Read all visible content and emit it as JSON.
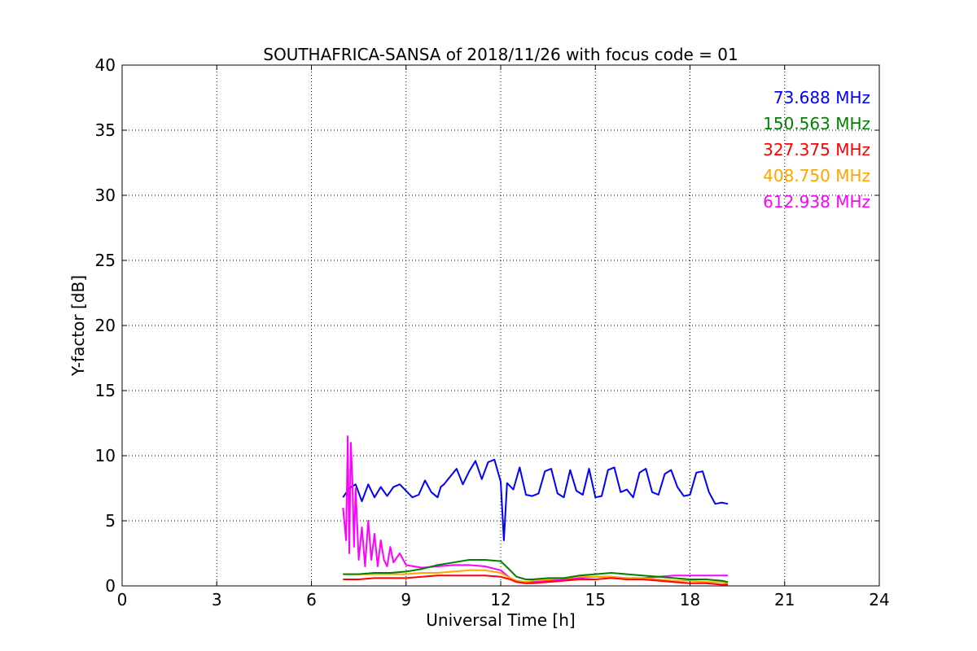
{
  "chart_data": {
    "type": "line",
    "title": "SOUTHAFRICA-SANSA of 2018/11/26 with focus code = 01",
    "xlabel": "Universal Time [h]",
    "ylabel": "Y-factor [dB]",
    "xlim": [
      0,
      24
    ],
    "ylim": [
      0,
      40
    ],
    "xticks": [
      0,
      3,
      6,
      9,
      12,
      15,
      18,
      21,
      24
    ],
    "xtick_labels": [
      "0",
      "3",
      "6",
      "9",
      "12",
      "15",
      "18",
      "21",
      "24"
    ],
    "yticks": [
      0,
      5,
      10,
      15,
      20,
      25,
      30,
      35,
      40
    ],
    "ytick_labels": [
      "0",
      "5",
      "10",
      "15",
      "20",
      "25",
      "30",
      "35",
      "40"
    ],
    "grid": true,
    "legend_position": "top-right",
    "series": [
      {
        "name": "73.688 MHz",
        "color": "#0000ff",
        "x": [
          7.0,
          7.2,
          7.4,
          7.6,
          7.8,
          8.0,
          8.2,
          8.4,
          8.6,
          8.8,
          9.0,
          9.2,
          9.4,
          9.6,
          9.8,
          10.0,
          10.1,
          10.2,
          10.4,
          10.6,
          10.8,
          11.0,
          11.2,
          11.4,
          11.6,
          11.8,
          12.0,
          12.1,
          12.2,
          12.4,
          12.6,
          12.8,
          13.0,
          13.2,
          13.4,
          13.6,
          13.8,
          14.0,
          14.2,
          14.4,
          14.6,
          14.8,
          15.0,
          15.2,
          15.4,
          15.6,
          15.8,
          16.0,
          16.2,
          16.4,
          16.6,
          16.8,
          17.0,
          17.2,
          17.4,
          17.6,
          17.8,
          18.0,
          18.2,
          18.4,
          18.6,
          18.8,
          19.0,
          19.2
        ],
        "values": [
          6.8,
          7.5,
          7.8,
          6.5,
          7.8,
          6.8,
          7.6,
          6.9,
          7.6,
          7.8,
          7.3,
          6.8,
          7.0,
          8.1,
          7.2,
          6.8,
          7.6,
          7.8,
          8.4,
          9.0,
          7.8,
          8.8,
          9.6,
          8.2,
          9.5,
          9.7,
          8.0,
          3.5,
          7.9,
          7.4,
          9.1,
          7.0,
          6.9,
          7.1,
          8.8,
          9.0,
          7.1,
          6.8,
          8.9,
          7.3,
          7.0,
          9.0,
          6.8,
          6.9,
          8.9,
          9.1,
          7.2,
          7.4,
          6.8,
          8.7,
          9.0,
          7.2,
          7.0,
          8.6,
          8.9,
          7.6,
          6.9,
          7.0,
          8.7,
          8.8,
          7.2,
          6.3,
          6.4,
          6.3
        ]
      },
      {
        "name": "150.563 MHz",
        "color": "#008000",
        "x": [
          7.0,
          7.5,
          8.0,
          8.5,
          9.0,
          9.5,
          10.0,
          10.5,
          11.0,
          11.5,
          12.0,
          12.3,
          12.5,
          12.8,
          13.0,
          13.5,
          14.0,
          14.5,
          15.0,
          15.5,
          16.0,
          16.5,
          17.0,
          17.5,
          18.0,
          18.5,
          19.0,
          19.2
        ],
        "values": [
          0.9,
          0.9,
          1.0,
          1.0,
          1.1,
          1.3,
          1.6,
          1.8,
          2.0,
          2.0,
          1.9,
          1.2,
          0.7,
          0.5,
          0.5,
          0.6,
          0.6,
          0.8,
          0.9,
          1.0,
          0.9,
          0.8,
          0.7,
          0.6,
          0.5,
          0.5,
          0.4,
          0.3
        ]
      },
      {
        "name": "327.375 MHz",
        "color": "#ff0000",
        "x": [
          7.0,
          7.5,
          8.0,
          8.5,
          9.0,
          9.5,
          10.0,
          10.5,
          11.0,
          11.5,
          12.0,
          12.3,
          12.5,
          12.8,
          13.0,
          13.5,
          14.0,
          14.5,
          15.0,
          15.5,
          16.0,
          16.5,
          17.0,
          17.5,
          18.0,
          18.5,
          19.0,
          19.2
        ],
        "values": [
          0.5,
          0.5,
          0.6,
          0.6,
          0.6,
          0.7,
          0.8,
          0.8,
          0.8,
          0.8,
          0.7,
          0.5,
          0.3,
          0.2,
          0.2,
          0.3,
          0.4,
          0.5,
          0.5,
          0.6,
          0.5,
          0.5,
          0.4,
          0.3,
          0.2,
          0.2,
          0.1,
          0.1
        ]
      },
      {
        "name": "408.750 MHz",
        "color": "#ffa500",
        "x": [
          7.0,
          7.5,
          8.0,
          8.5,
          9.0,
          9.5,
          10.0,
          10.5,
          11.0,
          11.5,
          12.0,
          12.3,
          12.5,
          12.8,
          13.0,
          13.5,
          14.0,
          14.5,
          15.0,
          15.5,
          16.0,
          16.5,
          17.0,
          17.5,
          18.0,
          18.5,
          19.0,
          19.2
        ],
        "values": [
          0.9,
          0.9,
          0.9,
          0.9,
          0.9,
          1.0,
          1.0,
          1.1,
          1.2,
          1.2,
          1.0,
          0.6,
          0.4,
          0.3,
          0.4,
          0.5,
          0.6,
          0.7,
          0.7,
          0.7,
          0.6,
          0.6,
          0.5,
          0.4,
          0.4,
          0.3,
          0.3,
          0.2
        ]
      },
      {
        "name": "612.938 MHz",
        "color": "#ff00ff",
        "x": [
          7.0,
          7.1,
          7.15,
          7.2,
          7.25,
          7.3,
          7.35,
          7.4,
          7.5,
          7.6,
          7.7,
          7.8,
          7.9,
          8.0,
          8.1,
          8.2,
          8.3,
          8.4,
          8.5,
          8.6,
          8.8,
          9.0,
          9.5,
          10.0,
          10.5,
          11.0,
          11.5,
          12.0,
          12.3,
          12.5,
          12.8,
          13.0,
          13.5,
          14.0,
          14.5,
          15.0,
          15.5,
          16.0,
          16.5,
          17.0,
          17.5,
          18.0,
          18.5,
          19.0,
          19.2
        ],
        "values": [
          6.0,
          3.5,
          11.5,
          2.5,
          11.0,
          8.0,
          3.0,
          7.5,
          2.0,
          4.5,
          1.5,
          5.0,
          2.0,
          4.0,
          1.5,
          3.5,
          2.0,
          1.5,
          3.0,
          1.8,
          2.5,
          1.6,
          1.4,
          1.5,
          1.6,
          1.6,
          1.5,
          1.2,
          0.6,
          0.3,
          0.2,
          0.3,
          0.4,
          0.5,
          0.6,
          0.7,
          0.7,
          0.6,
          0.6,
          0.7,
          0.8,
          0.8,
          0.8,
          0.8,
          0.8
        ]
      }
    ]
  }
}
